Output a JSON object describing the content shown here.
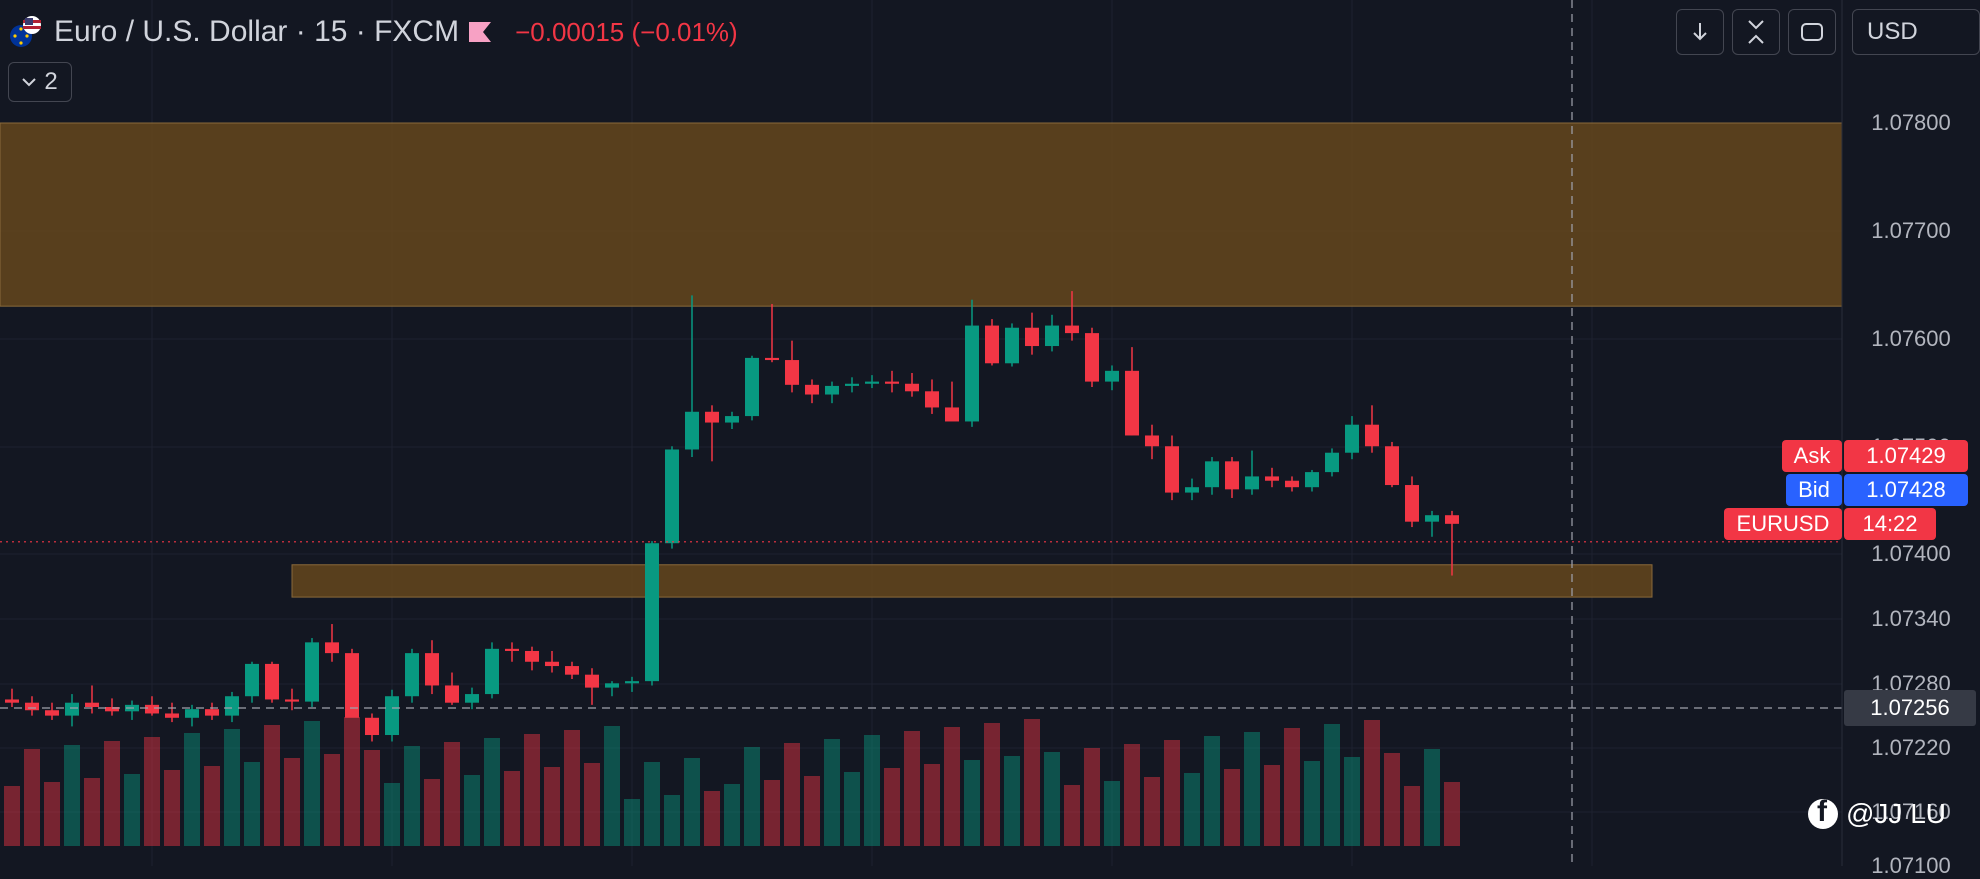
{
  "header": {
    "symbol_title": "Euro / U.S. Dollar · 15 · FXCM",
    "change": "−0.00015 (−0.01%)",
    "collapse_count": "2"
  },
  "toolbar": {
    "currency": "USD"
  },
  "price_axis": {
    "ticks": [
      "1.07800",
      "1.07700",
      "1.07600",
      "1.07500",
      "1.07400",
      "1.07340",
      "1.07280",
      "1.07220",
      "1.07160",
      "1.07100"
    ]
  },
  "tags": {
    "ask_label": "Ask",
    "ask_value": "1.07429",
    "bid_label": "Bid",
    "bid_value": "1.07428",
    "symbol_label": "EURUSD",
    "countdown": "14:22"
  },
  "crosshair": {
    "price": "1.07256"
  },
  "watermark": {
    "text": "@JJ LU"
  },
  "colors": {
    "up": "#089981",
    "down": "#f23645",
    "zone": "#6b4a1c",
    "bid_blue": "#2962ff"
  },
  "chart_data": {
    "type": "candlestick",
    "series": [
      {
        "name": "EURUSD 15",
        "ohlc": [
          [
            1.07265,
            1.07275,
            1.07258,
            1.07262
          ],
          [
            1.07262,
            1.07268,
            1.0725,
            1.07255
          ],
          [
            1.07255,
            1.07262,
            1.07246,
            1.0725
          ],
          [
            1.0725,
            1.0727,
            1.0724,
            1.07262
          ],
          [
            1.07262,
            1.07278,
            1.07252,
            1.07258
          ],
          [
            1.07258,
            1.07266,
            1.0725,
            1.07254
          ],
          [
            1.07254,
            1.07264,
            1.07246,
            1.0726
          ],
          [
            1.0726,
            1.07268,
            1.0725,
            1.07252
          ],
          [
            1.07252,
            1.07262,
            1.07244,
            1.07248
          ],
          [
            1.07248,
            1.0726,
            1.0724,
            1.07256
          ],
          [
            1.07256,
            1.07262,
            1.07246,
            1.0725
          ],
          [
            1.0725,
            1.07272,
            1.07244,
            1.07268
          ],
          [
            1.07268,
            1.073,
            1.07262,
            1.07298
          ],
          [
            1.07298,
            1.073,
            1.07262,
            1.07265
          ],
          [
            1.07265,
            1.07275,
            1.07255,
            1.07263
          ],
          [
            1.07263,
            1.07322,
            1.07258,
            1.07318
          ],
          [
            1.07318,
            1.07335,
            1.073,
            1.07308
          ],
          [
            1.07308,
            1.07312,
            1.0725,
            1.07248
          ],
          [
            1.07248,
            1.07252,
            1.07226,
            1.07232
          ],
          [
            1.07232,
            1.07274,
            1.07226,
            1.07268
          ],
          [
            1.07268,
            1.07312,
            1.07262,
            1.07308
          ],
          [
            1.07308,
            1.0732,
            1.0727,
            1.07278
          ],
          [
            1.07278,
            1.0729,
            1.0726,
            1.07262
          ],
          [
            1.07262,
            1.07276,
            1.07256,
            1.0727
          ],
          [
            1.0727,
            1.07318,
            1.07266,
            1.07312
          ],
          [
            1.07312,
            1.07318,
            1.073,
            1.0731
          ],
          [
            1.0731,
            1.07314,
            1.07292,
            1.073
          ],
          [
            1.073,
            1.0731,
            1.0729,
            1.07296
          ],
          [
            1.07296,
            1.073,
            1.07284,
            1.07288
          ],
          [
            1.07288,
            1.07294,
            1.0726,
            1.07276
          ],
          [
            1.07276,
            1.07282,
            1.07268,
            1.0728
          ],
          [
            1.0728,
            1.07286,
            1.07272,
            1.07282
          ],
          [
            1.07282,
            1.07412,
            1.07278,
            1.0741
          ],
          [
            1.0741,
            1.075,
            1.07405,
            1.07497
          ],
          [
            1.07497,
            1.0764,
            1.0749,
            1.07532
          ],
          [
            1.07532,
            1.07538,
            1.07486,
            1.07522
          ],
          [
            1.07522,
            1.07532,
            1.07516,
            1.07528
          ],
          [
            1.07528,
            1.07584,
            1.07524,
            1.07582
          ],
          [
            1.07582,
            1.07632,
            1.07578,
            1.0758
          ],
          [
            1.0758,
            1.07598,
            1.0755,
            1.07557
          ],
          [
            1.07557,
            1.07562,
            1.0754,
            1.07548
          ],
          [
            1.07548,
            1.0756,
            1.0754,
            1.07556
          ],
          [
            1.07556,
            1.07564,
            1.0755,
            1.07558
          ],
          [
            1.07558,
            1.07566,
            1.07554,
            1.0756
          ],
          [
            1.0756,
            1.0757,
            1.0755,
            1.07558
          ],
          [
            1.07558,
            1.07568,
            1.07546,
            1.07551
          ],
          [
            1.07551,
            1.07562,
            1.0753,
            1.07536
          ],
          [
            1.07536,
            1.0756,
            1.07524,
            1.07523
          ],
          [
            1.07523,
            1.07636,
            1.07518,
            1.07612
          ],
          [
            1.07612,
            1.07618,
            1.07575,
            1.07577
          ],
          [
            1.07577,
            1.07614,
            1.07574,
            1.0761
          ],
          [
            1.0761,
            1.07624,
            1.07585,
            1.07593
          ],
          [
            1.07593,
            1.07622,
            1.07588,
            1.07612
          ],
          [
            1.07612,
            1.07644,
            1.07598,
            1.07605
          ],
          [
            1.07605,
            1.0761,
            1.07555,
            1.0756
          ],
          [
            1.0756,
            1.07575,
            1.07552,
            1.0757
          ],
          [
            1.0757,
            1.07592,
            1.0751,
            1.0751
          ],
          [
            1.0751,
            1.0752,
            1.07488,
            1.075
          ],
          [
            1.075,
            1.0751,
            1.0745,
            1.07457
          ],
          [
            1.07457,
            1.0747,
            1.0745,
            1.07462
          ],
          [
            1.07462,
            1.0749,
            1.07455,
            1.07486
          ],
          [
            1.07486,
            1.0749,
            1.07452,
            1.0746
          ],
          [
            1.0746,
            1.07496,
            1.07455,
            1.07472
          ],
          [
            1.07472,
            1.0748,
            1.07462,
            1.07468
          ],
          [
            1.07468,
            1.07472,
            1.07458,
            1.07462
          ],
          [
            1.07462,
            1.07478,
            1.07458,
            1.07476
          ],
          [
            1.07476,
            1.07498,
            1.07472,
            1.07494
          ],
          [
            1.07494,
            1.07528,
            1.07488,
            1.0752
          ],
          [
            1.0752,
            1.07538,
            1.07494,
            1.075
          ],
          [
            1.075,
            1.07504,
            1.07462,
            1.07464
          ],
          [
            1.07464,
            1.07472,
            1.07425,
            1.0743
          ],
          [
            1.0743,
            1.0744,
            1.07416,
            1.07436
          ],
          [
            1.07436,
            1.0744,
            1.0738,
            1.07428
          ]
        ]
      }
    ],
    "zones": [
      [
        1.0763,
        1.078
      ],
      [
        1.0736,
        1.0739
      ]
    ],
    "crosshair_price": 1.07256,
    "last_price": 1.07428,
    "ylim": [
      1.0717,
      1.0784
    ],
    "grid": true
  }
}
